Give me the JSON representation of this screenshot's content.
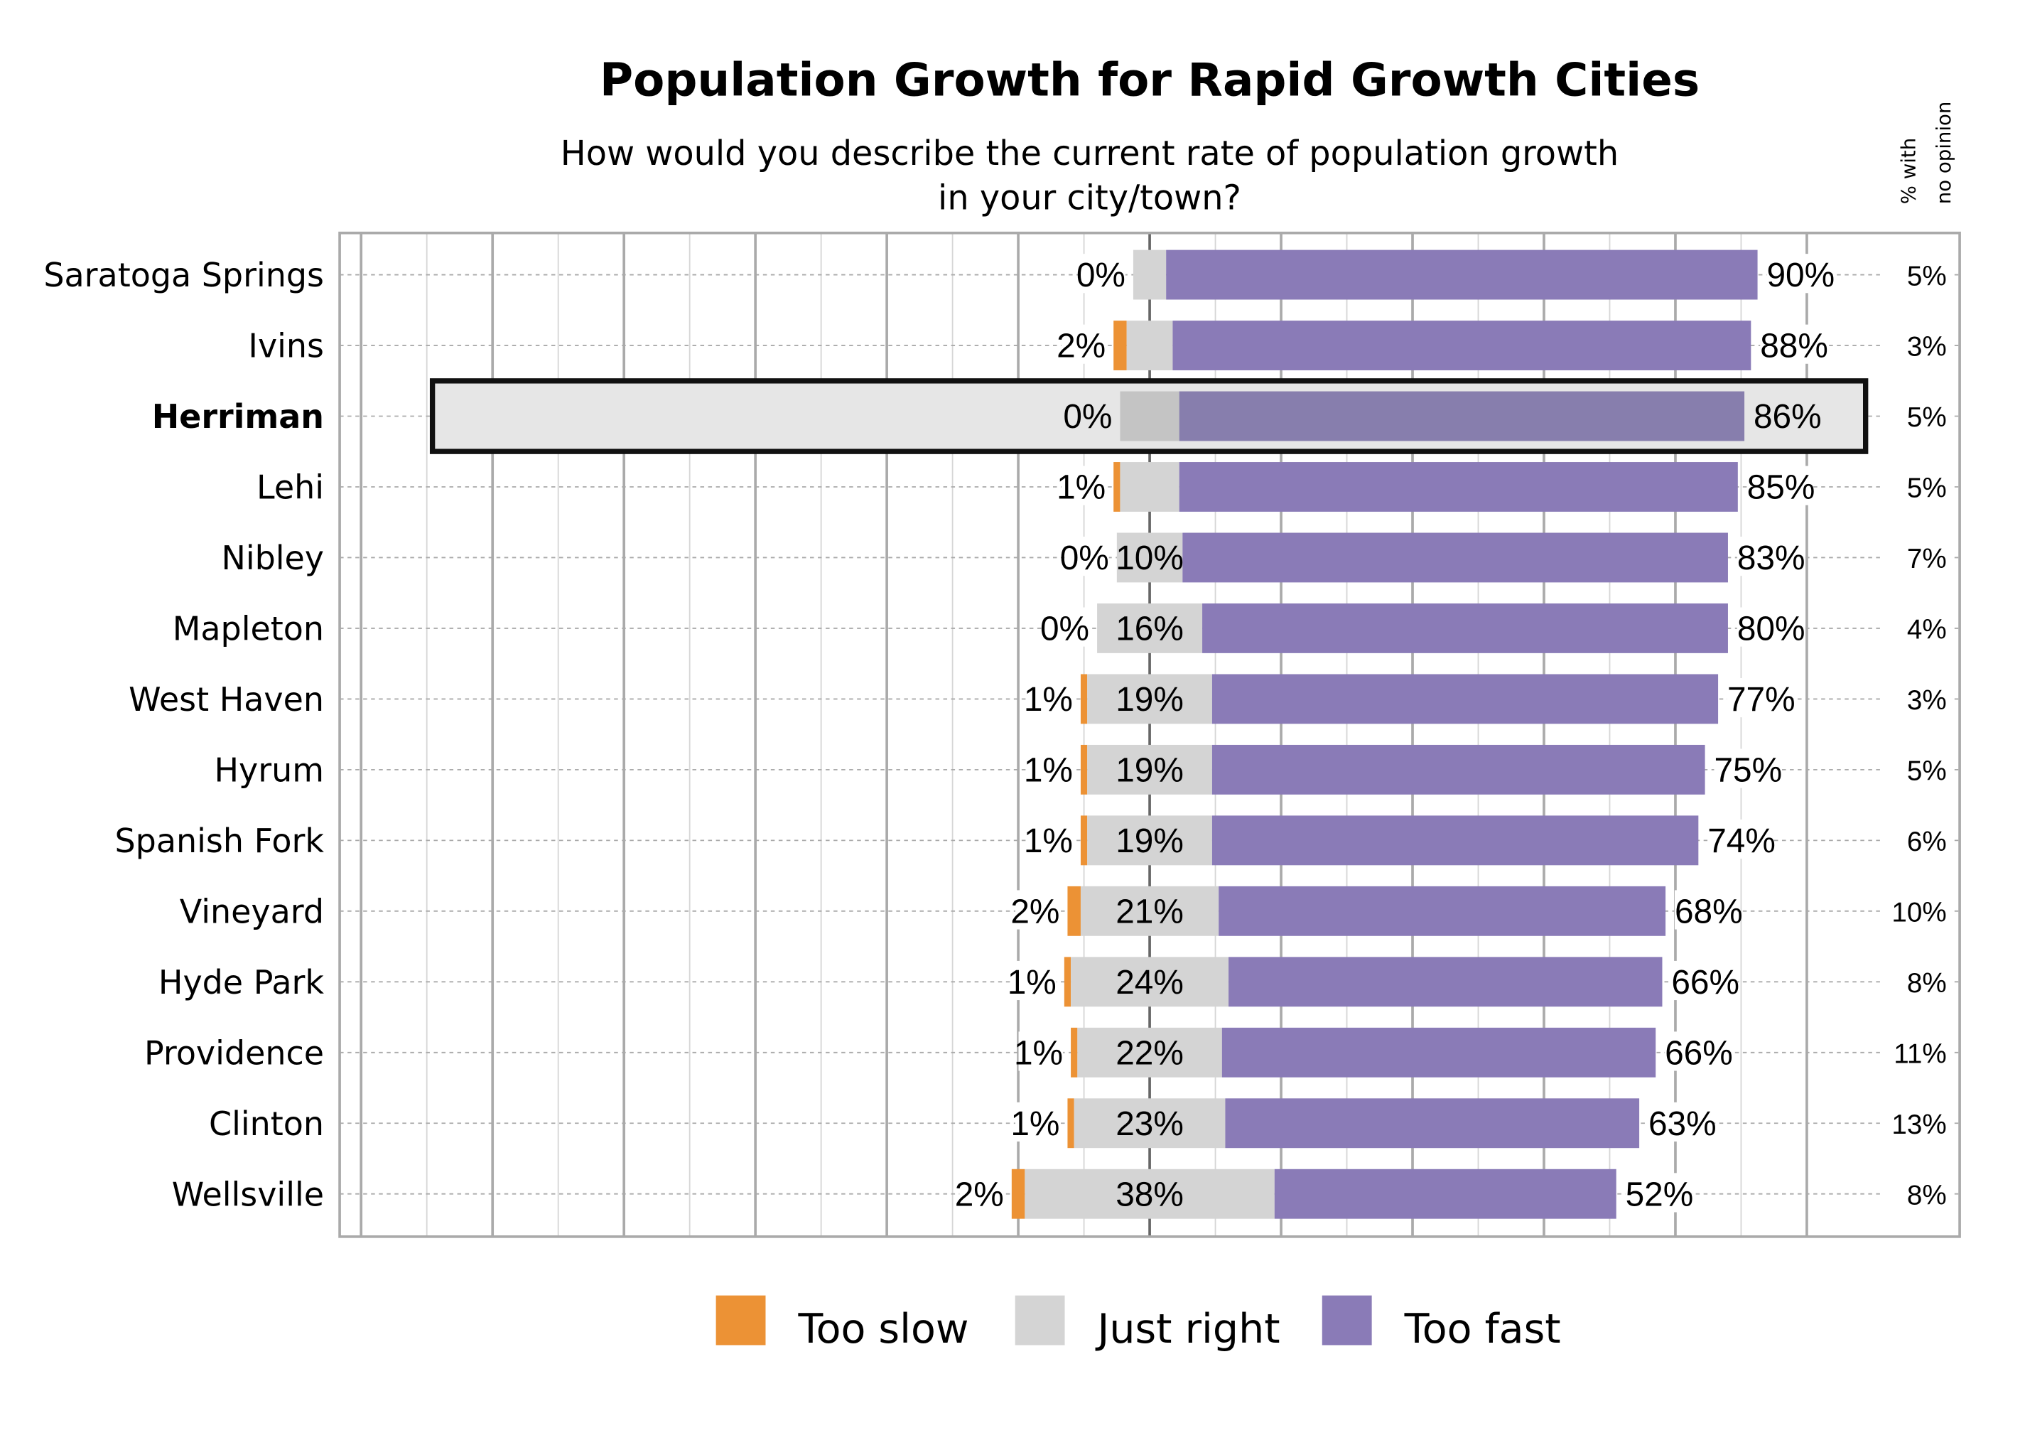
{
  "chart_data": {
    "type": "bar",
    "orientation": "horizontal",
    "stacked": "diverging",
    "title": "Population Growth for Rapid Growth Cities",
    "subtitle": [
      "How would you describe the current rate of population growth",
      "in your city/town?"
    ],
    "side_column_header": [
      "% with",
      "no opinion"
    ],
    "highlight_category": "Herriman",
    "categories": [
      "Saratoga Springs",
      "Ivins",
      "Herriman",
      "Lehi",
      "Nibley",
      "Mapleton",
      "West Haven",
      "Hyrum",
      "Spanish Fork",
      "Vineyard",
      "Hyde Park",
      "Providence",
      "Clinton",
      "Wellsville"
    ],
    "series": [
      {
        "name": "Too slow",
        "color": "#ec9235",
        "values": [
          0,
          2,
          0,
          1,
          0,
          0,
          1,
          1,
          1,
          2,
          1,
          1,
          1,
          2
        ]
      },
      {
        "name": "Just right",
        "color": "#d4d4d4",
        "values": [
          5,
          7,
          9,
          9,
          10,
          16,
          19,
          19,
          19,
          21,
          24,
          22,
          23,
          38
        ]
      },
      {
        "name": "Too fast",
        "color": "#8a7bb7",
        "values": [
          90,
          88,
          86,
          85,
          83,
          80,
          77,
          75,
          74,
          68,
          66,
          66,
          63,
          52
        ]
      }
    ],
    "no_opinion": [
      5,
      3,
      5,
      5,
      7,
      4,
      3,
      5,
      6,
      10,
      8,
      11,
      13,
      8
    ],
    "grid": true,
    "legend_position": "bottom",
    "highlight_colors": {
      "background": "#e6e6e6",
      "border": "#111111",
      "just_right": "#c4c4c4",
      "too_fast": "#877ead"
    }
  }
}
